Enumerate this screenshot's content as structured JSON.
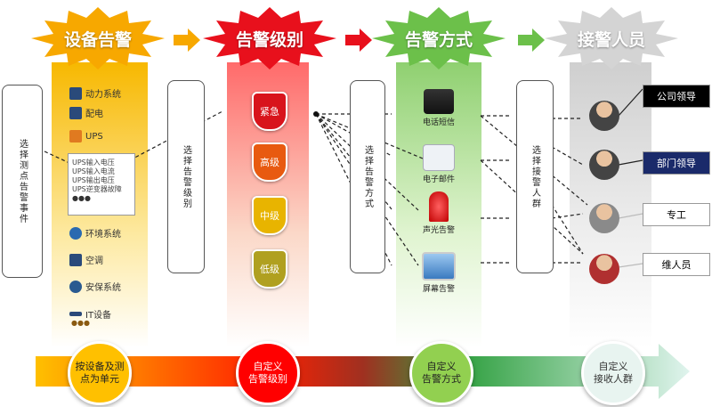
{
  "stages": [
    {
      "title": "设备告警",
      "color": "#f7a800"
    },
    {
      "title": "告警级别",
      "color": "#e8101c"
    },
    {
      "title": "告警方式",
      "color": "#6cc04a"
    },
    {
      "title": "接警人员",
      "color": "#d0d0d0"
    }
  ],
  "brackets": [
    "选择测点告警事件",
    "选择告警级别",
    "选择告警方式",
    "选择接警人群"
  ],
  "devices": [
    "动力系统",
    "配电",
    "UPS",
    "环境系统",
    "空调",
    "安保系统",
    "IT设备"
  ],
  "ups_popup": [
    "UPS输入电压",
    "UPS输入电流",
    "UPS输出电压",
    "UPS逆变器故障"
  ],
  "more": "●●●",
  "levels": [
    {
      "label": "紧急",
      "color": "#d8141c"
    },
    {
      "label": "高级",
      "color": "#e85a10"
    },
    {
      "label": "中级",
      "color": "#e8b400"
    },
    {
      "label": "低级",
      "color": "#b0a020"
    }
  ],
  "methods": [
    "电话短信",
    "电子邮件",
    "声光告警",
    "屏幕告警"
  ],
  "receivers": [
    {
      "label": "公司领导",
      "bg": "#000000",
      "fg": "#ffffff"
    },
    {
      "label": "部门领导",
      "bg": "#1a2a6a",
      "fg": "#ffffff"
    },
    {
      "label": "专工",
      "bg": "#ffffff",
      "fg": "#000000"
    },
    {
      "label": "维人员",
      "bg": "#ffffff",
      "fg": "#000000"
    }
  ],
  "flow": [
    {
      "line1": "按设备及测",
      "line2": "点为单元",
      "color": "#ffc000"
    },
    {
      "line1": "自定义",
      "line2": "告警级别",
      "color": "#ff0000"
    },
    {
      "line1": "自定义",
      "line2": "告警方式",
      "color": "#92d050"
    },
    {
      "line1": "自定义",
      "line2": "接收人群",
      "color": "#e8f4f0"
    }
  ]
}
